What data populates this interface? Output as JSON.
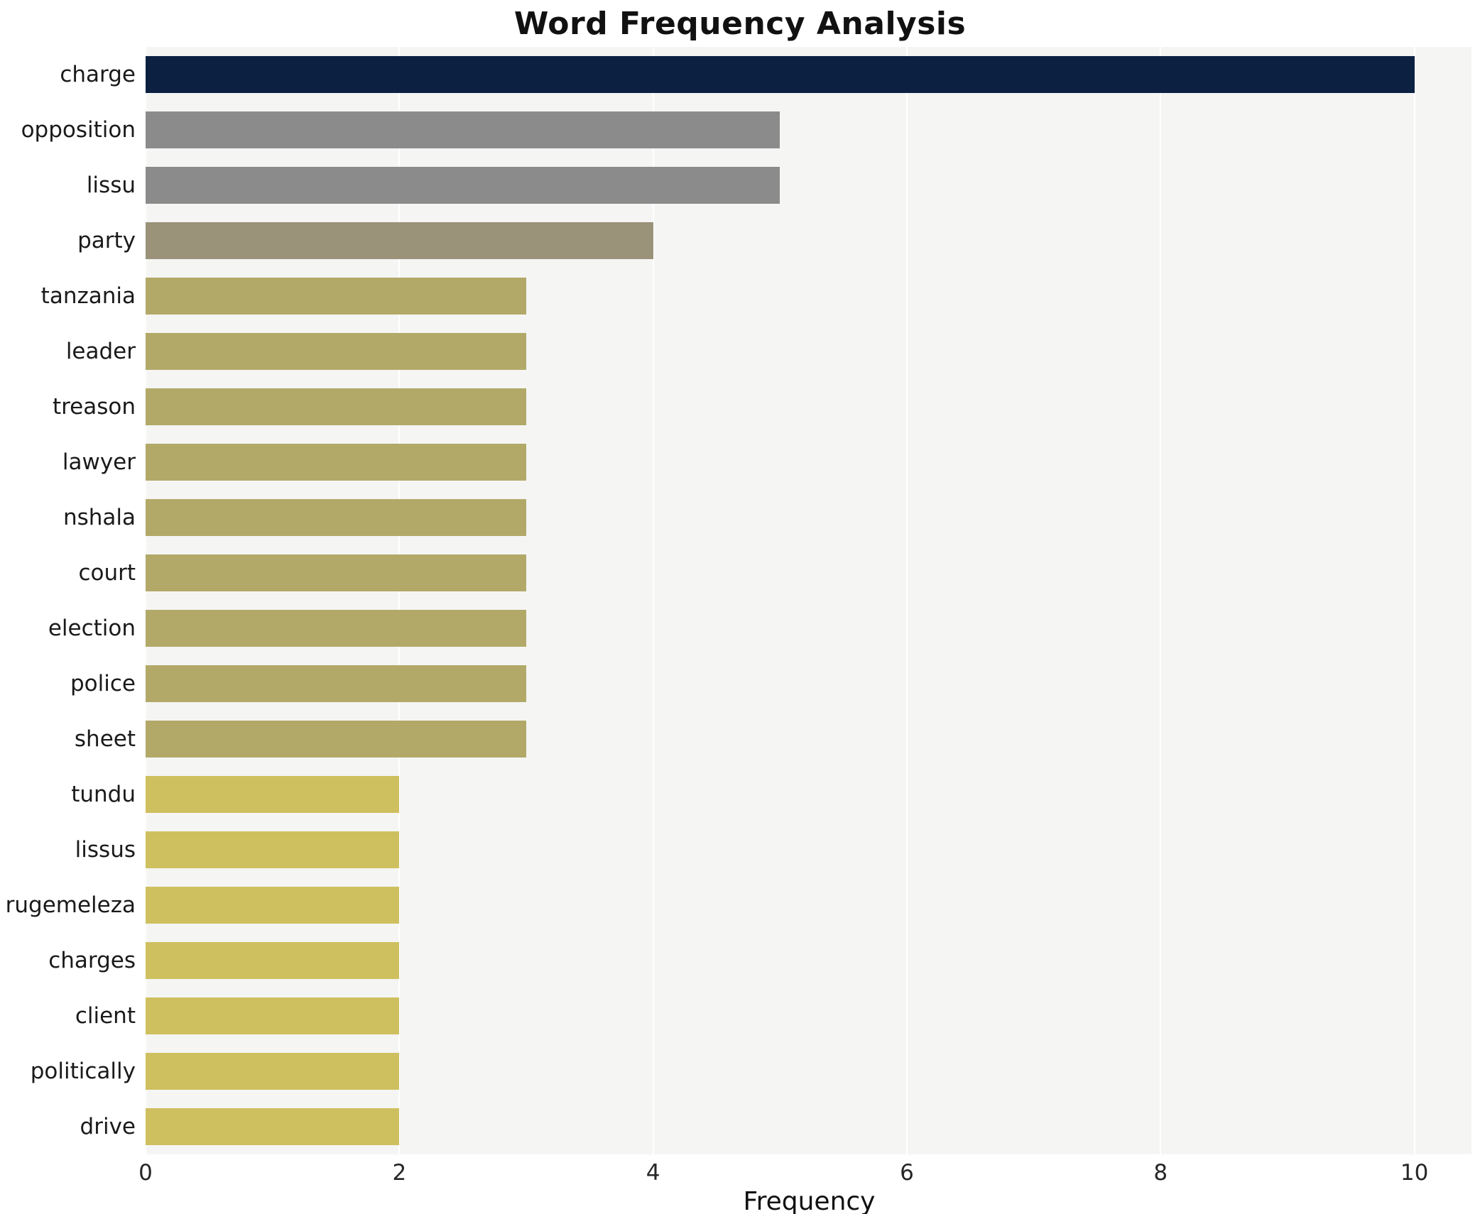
{
  "chart_data": {
    "type": "bar",
    "orientation": "horizontal",
    "title": "Word Frequency Analysis",
    "xlabel": "Frequency",
    "ylabel": "",
    "xlim": [
      0,
      10.45
    ],
    "xticks": [
      0,
      2,
      4,
      6,
      8,
      10
    ],
    "grid": true,
    "legend": false,
    "plot_background": "#f5f5f4",
    "gridline_color": "#ffffff",
    "categories": [
      "charge",
      "opposition",
      "lissu",
      "party",
      "tanzania",
      "leader",
      "treason",
      "lawyer",
      "nshala",
      "court",
      "election",
      "police",
      "sheet",
      "tundu",
      "lissus",
      "rugemeleza",
      "charges",
      "client",
      "politically",
      "drive"
    ],
    "values": [
      10,
      5,
      5,
      4,
      3,
      3,
      3,
      3,
      3,
      3,
      3,
      3,
      3,
      2,
      2,
      2,
      2,
      2,
      2,
      2
    ],
    "bar_colors": [
      "#0c2142",
      "#8b8b8b",
      "#8b8b8b",
      "#9a9279",
      "#b2a968",
      "#b2a968",
      "#b2a968",
      "#b2a968",
      "#b2a968",
      "#b2a968",
      "#b2a968",
      "#b2a968",
      "#b2a968",
      "#cfc05f",
      "#cfc05f",
      "#cfc05f",
      "#cfc05f",
      "#cfc05f",
      "#cfc05f",
      "#cfc05f"
    ]
  }
}
